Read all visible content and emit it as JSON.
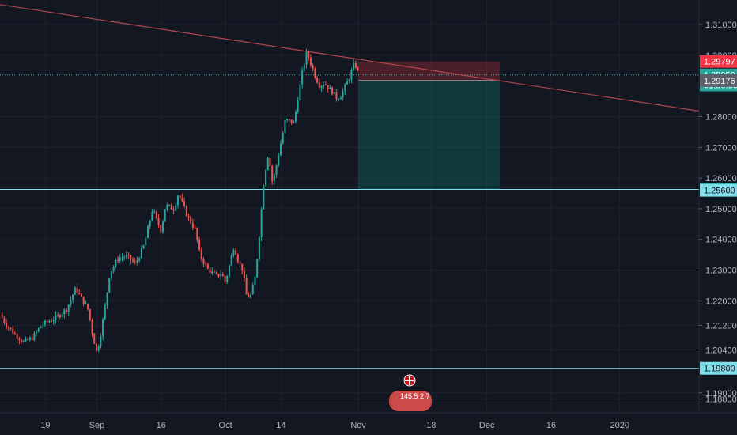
{
  "chart_data": {
    "type": "candlestick",
    "ylim": [
      1.1835,
      1.318
    ],
    "x_axis": {
      "ticks": [
        {
          "label": "19",
          "day": 19
        },
        {
          "label": "Sep",
          "day": 31
        },
        {
          "label": "16",
          "day": 46
        },
        {
          "label": "Oct",
          "day": 61
        },
        {
          "label": "14",
          "day": 74
        },
        {
          "label": "Nov",
          "day": 92
        },
        {
          "label": "18",
          "day": 109
        },
        {
          "label": "Dec",
          "day": 122
        },
        {
          "label": "16",
          "day": 137
        },
        {
          "label": "2020",
          "day": 153
        }
      ],
      "xlim": [
        8.4,
        171.5
      ]
    },
    "y_axis": {
      "ticks": [
        {
          "label": "1.31000",
          "value": 1.31
        },
        {
          "label": "1.30000",
          "value": 1.3
        },
        {
          "label": "1.28000",
          "value": 1.28
        },
        {
          "label": "1.27000",
          "value": 1.27
        },
        {
          "label": "1.26000",
          "value": 1.26
        },
        {
          "label": "1.25000",
          "value": 1.25
        },
        {
          "label": "1.24000",
          "value": 1.24
        },
        {
          "label": "1.23000",
          "value": 1.23
        },
        {
          "label": "1.22000",
          "value": 1.22
        },
        {
          "label": "1.21200",
          "value": 1.212
        },
        {
          "label": "1.20400",
          "value": 1.204
        },
        {
          "label": "1.19000",
          "value": 1.19
        },
        {
          "label": "1.18800",
          "value": 1.188
        }
      ]
    },
    "price_path": [
      [
        8.4,
        1.2155
      ],
      [
        10,
        1.212
      ],
      [
        12,
        1.209
      ],
      [
        14,
        1.2065
      ],
      [
        16,
        1.208
      ],
      [
        18,
        1.212
      ],
      [
        20,
        1.2135
      ],
      [
        22,
        1.215
      ],
      [
        24,
        1.2175
      ],
      [
        26,
        1.224
      ],
      [
        28,
        1.2195
      ],
      [
        29,
        1.217
      ],
      [
        30,
        1.209
      ],
      [
        31,
        1.203
      ],
      [
        32,
        1.21
      ],
      [
        33,
        1.219
      ],
      [
        34,
        1.229
      ],
      [
        36,
        1.234
      ],
      [
        38,
        1.2345
      ],
      [
        40,
        1.232
      ],
      [
        42,
        1.238
      ],
      [
        44,
        1.25
      ],
      [
        45,
        1.246
      ],
      [
        46,
        1.243
      ],
      [
        47,
        1.251
      ],
      [
        49,
        1.25
      ],
      [
        50,
        1.255
      ],
      [
        52,
        1.248
      ],
      [
        54,
        1.243
      ],
      [
        55,
        1.235
      ],
      [
        57,
        1.23
      ],
      [
        59,
        1.228
      ],
      [
        60,
        1.229
      ],
      [
        61,
        1.226
      ],
      [
        62,
        1.232
      ],
      [
        63,
        1.238
      ],
      [
        64,
        1.233
      ],
      [
        65,
        1.23
      ],
      [
        66,
        1.221
      ],
      [
        67,
        1.222
      ],
      [
        68,
        1.228
      ],
      [
        69,
        1.243
      ],
      [
        70,
        1.26
      ],
      [
        71,
        1.268
      ],
      [
        72,
        1.258
      ],
      [
        73,
        1.265
      ],
      [
        75,
        1.279
      ],
      [
        77,
        1.278
      ],
      [
        78,
        1.287
      ],
      [
        79,
        1.295
      ],
      [
        80,
        1.301
      ],
      [
        81,
        1.297
      ],
      [
        82,
        1.293
      ],
      [
        83,
        1.29
      ],
      [
        84,
        1.291
      ],
      [
        86,
        1.288
      ],
      [
        87,
        1.286
      ],
      [
        88,
        1.287
      ],
      [
        89,
        1.29
      ],
      [
        90,
        1.293
      ],
      [
        91,
        1.297
      ],
      [
        91.8,
        1.296
      ],
      [
        92,
        1.2936
      ]
    ],
    "trendline": {
      "from": [
        8.4,
        1.3165
      ],
      "to": [
        171.5,
        1.2818
      ],
      "color": "#b2474e"
    },
    "horizontal_lines": [
      {
        "value": 1.25628,
        "color": "#80deea"
      },
      {
        "value": 1.198,
        "color": "#80deea"
      }
    ],
    "current_price_line": {
      "value": 1.29359,
      "color": "#4db6ac"
    },
    "position": {
      "entry": 1.29176,
      "stop": 1.29797,
      "target": 1.25628,
      "x_start": 92,
      "x_end": 125,
      "loss_color": "rgba(242,54,69,0.25)",
      "profit_color": "rgba(8,153,129,0.25)"
    },
    "price_badges": [
      {
        "label": "1.29797",
        "value": 1.29797,
        "bg": "#f23645",
        "fg": "#ffffff"
      },
      {
        "label": "1.29359",
        "value": 1.29359,
        "bg": "#26a69a",
        "fg": "#ffffff"
      },
      {
        "label": "01:56:56",
        "value": 1.2903,
        "bg": "#26a69a",
        "fg": "#ffffff"
      },
      {
        "label": "1.29176",
        "value": 1.29176,
        "bg": "#5d606b",
        "fg": "#ffffff"
      },
      {
        "label": "1.25628",
        "value": 1.25628,
        "bg": "#089981",
        "fg": "#ffffff"
      },
      {
        "label": "1.25600",
        "value": 1.256,
        "bg": "#80deea",
        "fg": "#131722"
      },
      {
        "label": "1.19800",
        "value": 1.198,
        "bg": "#80deea",
        "fg": "#131722"
      }
    ],
    "up_color": "#26a69a",
    "down_color": "#ef5350"
  },
  "event_marker": {
    "flag_icon": "uk-flag-icon",
    "text": "145:5 2 7"
  }
}
